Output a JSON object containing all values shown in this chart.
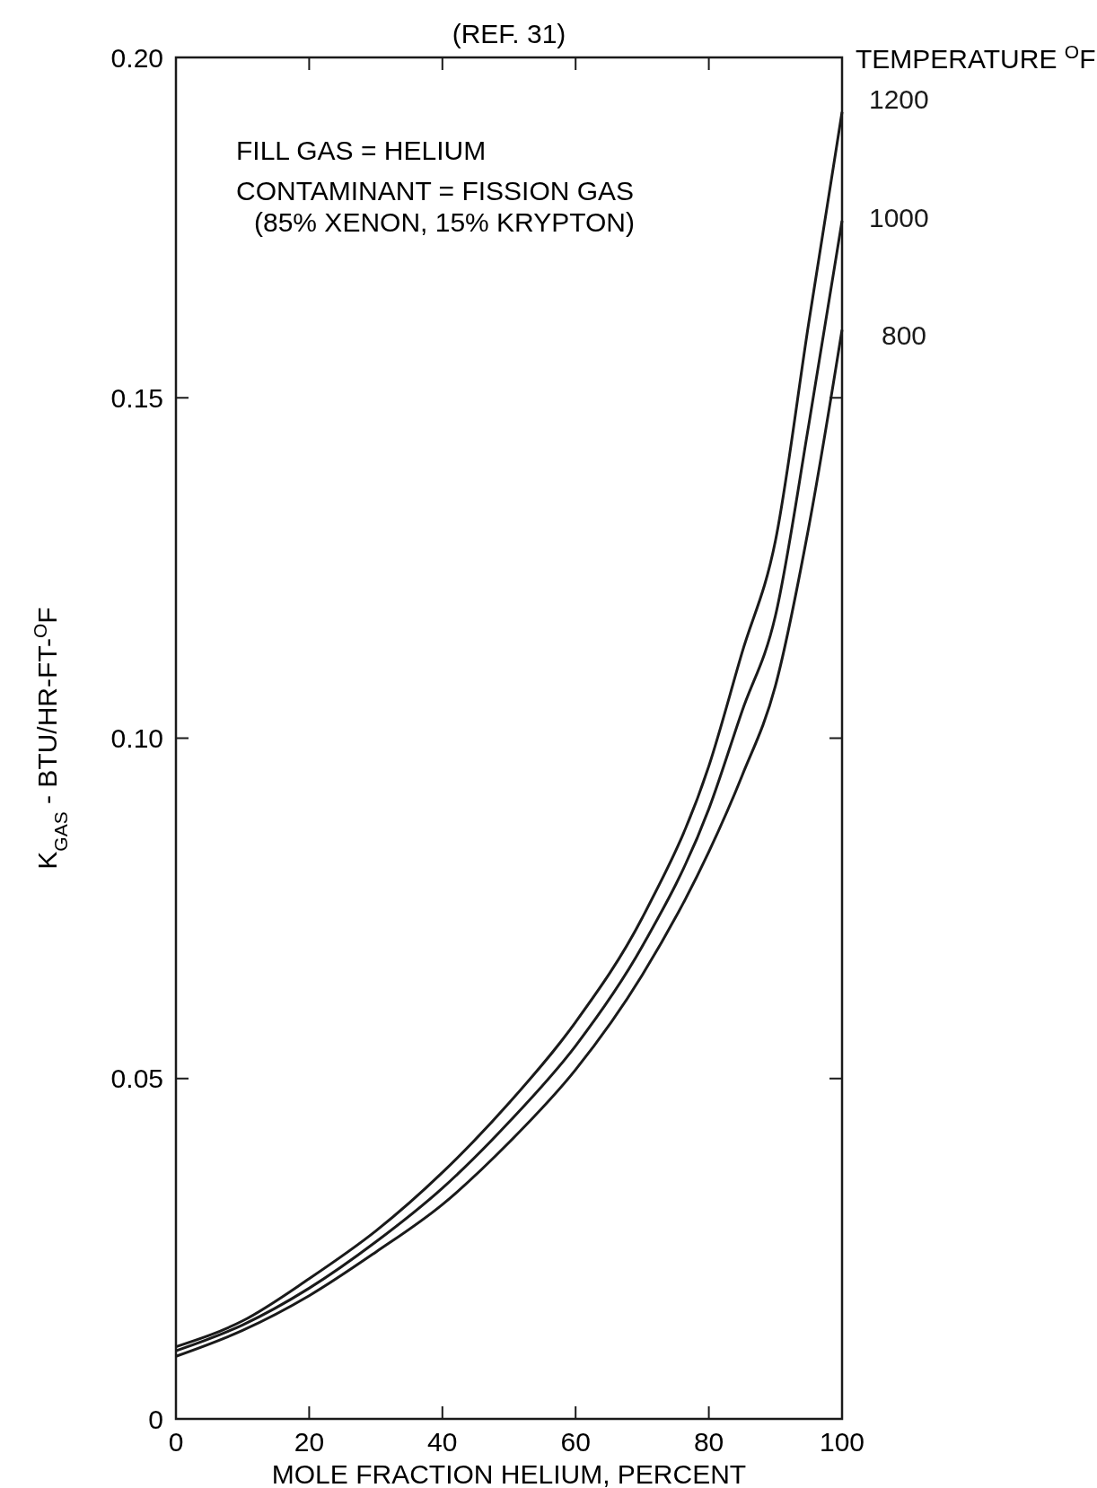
{
  "chart_data": {
    "type": "line",
    "title": "(REF. 31)",
    "xlabel": "MOLE FRACTION HELIUM, PERCENT",
    "ylabel": "K$_{GAS}$ - BTU/HR-FT-$^{O}$F",
    "legend_title": "TEMPERATURE $^{O}$F",
    "legend": "right",
    "annotations": [
      "FILL GAS = HELIUM",
      "CONTAMINANT = FISSION GAS",
      "(85% XENON, 15% KRYPTON)"
    ],
    "x": [
      0,
      10,
      20,
      30,
      40,
      50,
      60,
      70,
      80,
      85,
      90,
      95,
      100
    ],
    "series": [
      {
        "name": "1200",
        "color": "#1a1a1a",
        "values": [
          0.0106,
          0.0144,
          0.0206,
          0.0276,
          0.0362,
          0.0464,
          0.0583,
          0.0736,
          0.0959,
          0.1126,
          0.129,
          0.161,
          0.192
        ]
      },
      {
        "name": "1000",
        "color": "#1a1a1a",
        "values": [
          0.01,
          0.0138,
          0.0192,
          0.026,
          0.0339,
          0.0436,
          0.0548,
          0.0694,
          0.0896,
          0.104,
          0.118,
          0.146,
          0.176
        ]
      },
      {
        "name": "800",
        "color": "#1a1a1a",
        "values": [
          0.0092,
          0.013,
          0.0181,
          0.0245,
          0.0315,
          0.0406,
          0.0513,
          0.0652,
          0.0833,
          0.0945,
          0.1077,
          0.131,
          0.16
        ]
      }
    ],
    "xlim": [
      0,
      100
    ],
    "xticks": [
      0,
      20,
      40,
      60,
      80,
      100
    ],
    "ylim": [
      0,
      0.2
    ],
    "yticks": [
      0,
      {
        "value": 0.05,
        "label": "0.05"
      },
      {
        "value": 0.1,
        "label": "0.10"
      },
      {
        "value": 0.15,
        "label": "0.15"
      },
      {
        "value": 0.2,
        "label": "0.20"
      }
    ],
    "grid": false,
    "line_style": "solid",
    "marker": "none"
  }
}
